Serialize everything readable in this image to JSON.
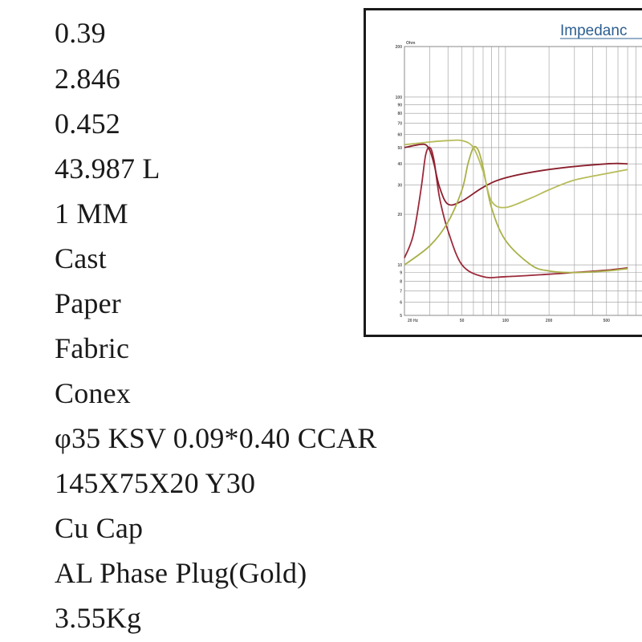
{
  "specs": [
    {
      "value": "0.39"
    },
    {
      "value": "2.846"
    },
    {
      "value": "0.452"
    },
    {
      "value": "43.987 L"
    },
    {
      "value": "1  MM"
    },
    {
      "value": "Cast"
    },
    {
      "value": "Paper"
    },
    {
      "value": "Fabric"
    },
    {
      "value": "Conex"
    },
    {
      "value": "φ35 KSV 0.09*0.40 CCAR"
    },
    {
      "value": "145X75X20  Y30"
    },
    {
      "value": "Cu Cap"
    },
    {
      "value": "AL Phase Plug(Gold)"
    },
    {
      "value": "3.55Kg"
    }
  ],
  "chart_data": {
    "type": "line",
    "title": "Impedanc",
    "ylabel": "Ohm",
    "xscale": "log",
    "yscale": "log",
    "xlim": [
      20,
      1000
    ],
    "ylim": [
      5,
      200
    ],
    "grid": true,
    "x_ticks": [
      "20",
      "50",
      "100",
      "200",
      "500"
    ],
    "y_ticks": [
      "200",
      "100",
      "90",
      "80",
      "70",
      "60",
      "50",
      "40",
      "30",
      "20",
      "10",
      "9",
      "8",
      "7",
      "6",
      "5"
    ],
    "x_tick_suffix": "Hz",
    "colors": [
      "#9c2a3a",
      "#8a1f2c",
      "#a9b048",
      "#b7bc5a"
    ],
    "series": [
      {
        "x": [
          20,
          23,
          26,
          28,
          30,
          32,
          35,
          40,
          50,
          70,
          100,
          200,
          500,
          700
        ],
        "y": [
          11,
          15,
          28,
          45,
          50,
          42,
          25,
          16,
          10,
          8.5,
          8.5,
          8.8,
          9.3,
          9.6
        ]
      },
      {
        "x": [
          20,
          25,
          28,
          30,
          32,
          35,
          40,
          50,
          70,
          100,
          200,
          500,
          700
        ],
        "y": [
          50,
          52,
          52,
          48,
          40,
          29,
          23,
          24,
          29,
          33,
          37,
          40,
          40
        ]
      },
      {
        "x": [
          20,
          30,
          40,
          50,
          55,
          60,
          65,
          70,
          80,
          100,
          150,
          200,
          300,
          500,
          700
        ],
        "y": [
          10,
          13,
          18,
          28,
          40,
          50,
          48,
          38,
          22,
          14,
          10,
          9.2,
          9,
          9.2,
          9.5
        ]
      },
      {
        "x": [
          20,
          30,
          40,
          50,
          60,
          70,
          80,
          100,
          150,
          200,
          300,
          500,
          700
        ],
        "y": [
          52,
          54,
          55,
          55,
          50,
          36,
          24,
          22,
          25,
          28,
          32,
          35,
          37
        ]
      }
    ]
  }
}
